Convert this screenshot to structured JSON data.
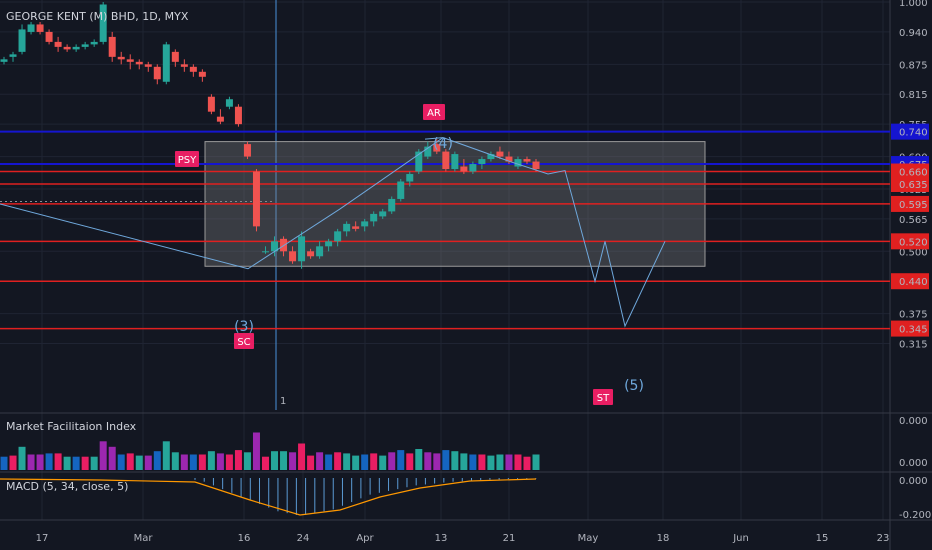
{
  "title": "GEORGE KENT (M) BHD, 1D, MYX",
  "mfi_title": "Market Facilitaion Index",
  "macd_title": "MACD (5, 34, close, 5)",
  "colors": {
    "bg": "#131722",
    "up": "#26a69a",
    "down": "#ef5350",
    "grid": "#1f2433",
    "red_line": "#e02020",
    "blue_line": "#1515d0",
    "label_pink": "#e91e63",
    "wave": "#6fa8dc",
    "box": "#808080"
  },
  "chart_data": [
    {
      "type": "candlestick",
      "title": "GEORGE KENT (M) BHD, 1D, MYX",
      "y_ticks": [
        "1.000",
        "0.940",
        "0.875",
        "0.815",
        "0.755",
        "0.690",
        "0.625",
        "0.565",
        "0.500",
        "0.440",
        "0.375",
        "0.315"
      ],
      "x_ticks": [
        "17",
        "Mar",
        "16",
        "24",
        "Apr",
        "13",
        "21",
        "May",
        "18",
        "Jun",
        "15",
        "23"
      ],
      "ohlc": [
        [
          0.88,
          0.89,
          0.875,
          0.885
        ],
        [
          0.89,
          0.9,
          0.88,
          0.895
        ],
        [
          0.9,
          0.955,
          0.895,
          0.945
        ],
        [
          0.94,
          0.96,
          0.935,
          0.955
        ],
        [
          0.955,
          0.96,
          0.935,
          0.94
        ],
        [
          0.94,
          0.945,
          0.915,
          0.92
        ],
        [
          0.92,
          0.93,
          0.9,
          0.91
        ],
        [
          0.91,
          0.915,
          0.9,
          0.905
        ],
        [
          0.905,
          0.915,
          0.9,
          0.91
        ],
        [
          0.91,
          0.92,
          0.905,
          0.915
        ],
        [
          0.915,
          0.925,
          0.91,
          0.92
        ],
        [
          0.92,
          1.0,
          0.915,
          0.995
        ],
        [
          0.93,
          0.94,
          0.88,
          0.89
        ],
        [
          0.89,
          0.9,
          0.875,
          0.885
        ],
        [
          0.885,
          0.895,
          0.865,
          0.88
        ],
        [
          0.88,
          0.885,
          0.865,
          0.875
        ],
        [
          0.875,
          0.88,
          0.86,
          0.87
        ],
        [
          0.87,
          0.875,
          0.835,
          0.845
        ],
        [
          0.84,
          0.92,
          0.835,
          0.915
        ],
        [
          0.9,
          0.905,
          0.87,
          0.88
        ],
        [
          0.875,
          0.885,
          0.86,
          0.87
        ],
        [
          0.87,
          0.875,
          0.85,
          0.86
        ],
        [
          0.86,
          0.865,
          0.84,
          0.85
        ],
        [
          0.81,
          0.815,
          0.775,
          0.78
        ],
        [
          0.77,
          0.785,
          0.755,
          0.76
        ],
        [
          0.79,
          0.81,
          0.785,
          0.805
        ],
        [
          0.79,
          0.795,
          0.75,
          0.755
        ],
        [
          0.715,
          0.72,
          0.685,
          0.69
        ],
        [
          0.66,
          0.665,
          0.54,
          0.55
        ],
        [
          0.5,
          0.51,
          0.495,
          0.5
        ],
        [
          0.5,
          0.53,
          0.49,
          0.52
        ],
        [
          0.525,
          0.53,
          0.49,
          0.5
        ],
        [
          0.5,
          0.51,
          0.475,
          0.48
        ],
        [
          0.48,
          0.54,
          0.465,
          0.53
        ],
        [
          0.5,
          0.505,
          0.485,
          0.49
        ],
        [
          0.49,
          0.52,
          0.485,
          0.51
        ],
        [
          0.51,
          0.525,
          0.5,
          0.52
        ],
        [
          0.52,
          0.545,
          0.51,
          0.54
        ],
        [
          0.54,
          0.56,
          0.53,
          0.555
        ],
        [
          0.55,
          0.56,
          0.54,
          0.545
        ],
        [
          0.55,
          0.565,
          0.54,
          0.56
        ],
        [
          0.56,
          0.58,
          0.55,
          0.575
        ],
        [
          0.57,
          0.585,
          0.565,
          0.58
        ],
        [
          0.58,
          0.61,
          0.575,
          0.605
        ],
        [
          0.605,
          0.645,
          0.6,
          0.64
        ],
        [
          0.64,
          0.66,
          0.63,
          0.655
        ],
        [
          0.66,
          0.705,
          0.655,
          0.7
        ],
        [
          0.69,
          0.72,
          0.685,
          0.71
        ],
        [
          0.715,
          0.725,
          0.695,
          0.7
        ],
        [
          0.7,
          0.705,
          0.66,
          0.665
        ],
        [
          0.665,
          0.7,
          0.66,
          0.695
        ],
        [
          0.67,
          0.685,
          0.655,
          0.66
        ],
        [
          0.66,
          0.68,
          0.655,
          0.675
        ],
        [
          0.675,
          0.69,
          0.665,
          0.685
        ],
        [
          0.685,
          0.7,
          0.68,
          0.695
        ],
        [
          0.7,
          0.71,
          0.685,
          0.69
        ],
        [
          0.69,
          0.7,
          0.675,
          0.68
        ],
        [
          0.67,
          0.69,
          0.665,
          0.685
        ],
        [
          0.685,
          0.69,
          0.675,
          0.68
        ],
        [
          0.68,
          0.685,
          0.66,
          0.665
        ]
      ],
      "horizontal_levels": [
        {
          "value": 0.74,
          "color": "blue",
          "label": "0.740"
        },
        {
          "value": 0.675,
          "color": "blue",
          "label": "0.675"
        },
        {
          "value": 0.66,
          "color": "red",
          "label": "0.660"
        },
        {
          "value": 0.635,
          "color": "red",
          "label": "0.635"
        },
        {
          "value": 0.595,
          "color": "red",
          "label": "0.595"
        },
        {
          "value": 0.52,
          "color": "red",
          "label": "0.520"
        },
        {
          "value": 0.44,
          "color": "red",
          "label": "0.440"
        },
        {
          "value": 0.345,
          "color": "red",
          "label": "0.345"
        }
      ],
      "range_box": {
        "top": 0.72,
        "bottom": 0.47
      },
      "annotations": [
        "PSY",
        "SC",
        "AR",
        "ST",
        "(3)",
        "(4)",
        "(5)"
      ],
      "vertical_marker_label": "1"
    },
    {
      "type": "bar",
      "title": "Market Facilitaion Index",
      "y_ticks": [
        "0.000",
        "0.000"
      ]
    },
    {
      "type": "bar",
      "title": "MACD (5, 34, close, 5)",
      "y_ticks": [
        "0.000",
        "-0.200"
      ],
      "macd_values": [
        -0.01,
        -0.02,
        -0.04,
        -0.06,
        -0.08,
        -0.1,
        -0.12,
        -0.14,
        -0.16,
        -0.18,
        -0.19,
        -0.2,
        -0.2,
        -0.19,
        -0.18,
        -0.17,
        -0.15,
        -0.13,
        -0.11,
        -0.09,
        -0.08,
        -0.07,
        -0.06,
        -0.05,
        -0.04,
        -0.035,
        -0.03,
        -0.025,
        -0.02,
        -0.018,
        -0.015,
        -0.012,
        -0.01,
        -0.008,
        -0.006,
        -0.005,
        -0.004,
        -0.003
      ]
    }
  ]
}
